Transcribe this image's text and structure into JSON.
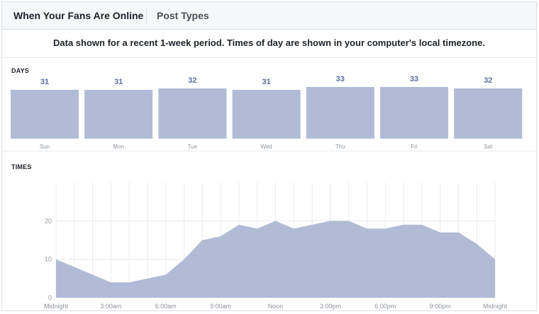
{
  "tabs": [
    {
      "label": "When Your Fans Are Online",
      "active": true
    },
    {
      "label": "Post Types",
      "active": false
    }
  ],
  "notice": "Data shown for a recent 1-week period. Times of day are shown in your computer's local timezone.",
  "colors": {
    "bar": "#b1bbd6",
    "value_label": "#5b6e9f",
    "axis_text": "#90949c"
  },
  "chart_data": [
    {
      "type": "bar",
      "section_label": "DAYS",
      "categories": [
        "Sun",
        "Mon",
        "Tue",
        "Wed",
        "Thu",
        "Fri",
        "Sat"
      ],
      "values": [
        31,
        31,
        32,
        31,
        33,
        33,
        32
      ]
    },
    {
      "type": "area",
      "section_label": "TIMES",
      "x": [
        0,
        1,
        2,
        3,
        4,
        5,
        6,
        7,
        8,
        9,
        10,
        11,
        12,
        13,
        14,
        15,
        16,
        17,
        18,
        19,
        20,
        21,
        22,
        23,
        24
      ],
      "values": [
        10,
        8,
        6,
        4,
        4,
        5,
        6,
        10,
        15,
        16,
        19,
        18,
        20,
        18,
        19,
        20,
        20,
        18,
        18,
        19,
        19,
        17,
        17,
        14,
        10
      ],
      "xticks": [
        "Midnight",
        "3:00am",
        "6:00am",
        "9:00am",
        "Noon",
        "3:00pm",
        "6:00pm",
        "9:00pm",
        "Midnight"
      ],
      "yticks": [
        "0",
        "10",
        "20"
      ],
      "ylim": [
        0,
        30
      ],
      "grid": true
    }
  ]
}
